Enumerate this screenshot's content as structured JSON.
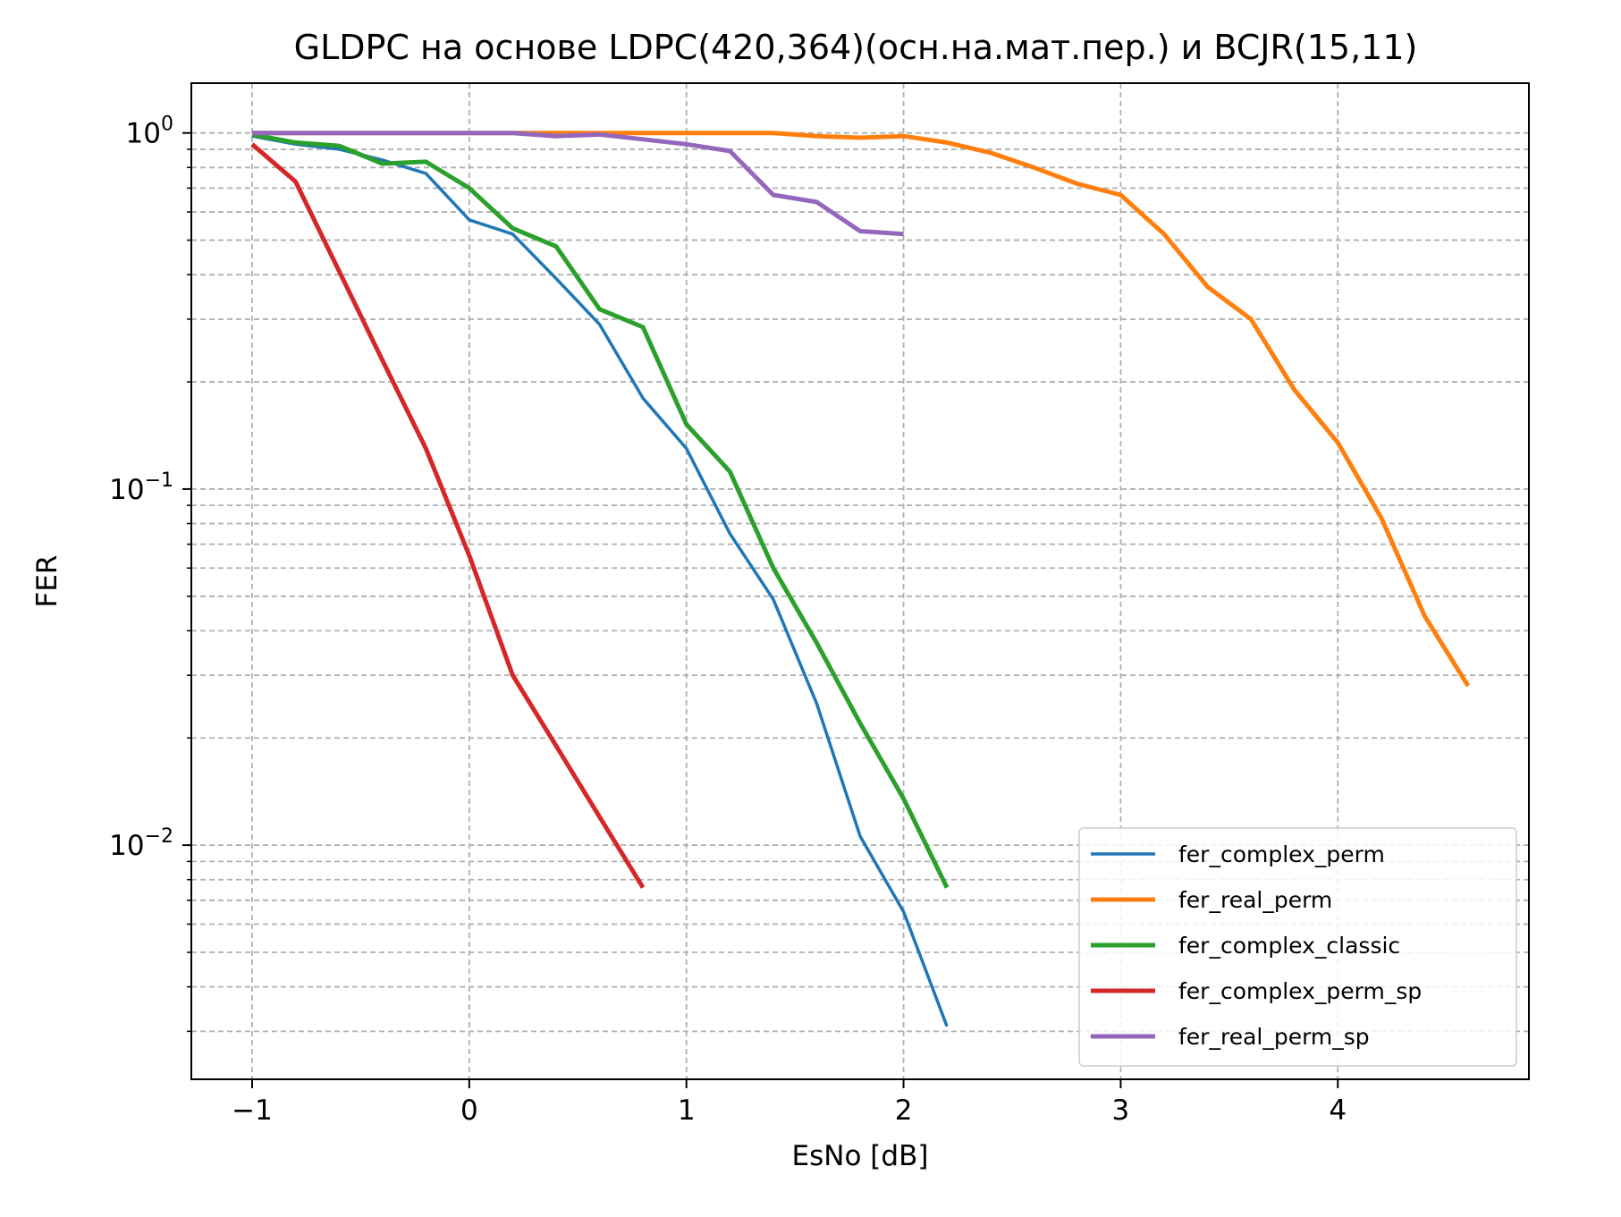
{
  "chart_data": {
    "type": "line",
    "title": "GLDPC на основе LDPC(420,364)(осн.на.мат.пер.) и BCJR(15,11)",
    "xlabel": "EsNo [dB]",
    "ylabel": "FER",
    "xlim": [
      -1.28,
      4.88
    ],
    "ylim": [
      0.0022,
      1.38
    ],
    "yscale": "log",
    "grid": true,
    "legend_position": "lower-right",
    "x_ticks": [
      {
        "value": -1,
        "label": "−1"
      },
      {
        "value": 0,
        "label": "0"
      },
      {
        "value": 1,
        "label": "1"
      },
      {
        "value": 2,
        "label": "2"
      },
      {
        "value": 3,
        "label": "3"
      },
      {
        "value": 4,
        "label": "4"
      }
    ],
    "y_ticks": [
      {
        "value": 1,
        "base": "10",
        "exp": "0"
      },
      {
        "value": 0.1,
        "base": "10",
        "exp": "−1"
      },
      {
        "value": 0.01,
        "base": "10",
        "exp": "−2"
      }
    ],
    "series": [
      {
        "name": "fer_complex_perm",
        "color": "#1f77b4",
        "width": 3.5,
        "x": [
          -1.0,
          -0.8,
          -0.6,
          -0.4,
          -0.2,
          0.0,
          0.2,
          0.4,
          0.6,
          0.8,
          1.0,
          1.2,
          1.4,
          1.6,
          1.8,
          2.0,
          2.2
        ],
        "y": [
          0.98,
          0.93,
          0.9,
          0.84,
          0.77,
          0.57,
          0.52,
          0.39,
          0.29,
          0.18,
          0.13,
          0.075,
          0.049,
          0.025,
          0.0106,
          0.0065,
          0.0031
        ]
      },
      {
        "name": "fer_real_perm",
        "color": "#ff7f0e",
        "width": 5,
        "x": [
          -1.0,
          -0.6,
          -0.2,
          0.2,
          0.6,
          1.0,
          1.4,
          1.6,
          1.8,
          2.0,
          2.2,
          2.4,
          2.6,
          2.8,
          3.0,
          3.2,
          3.4,
          3.6,
          3.8,
          4.0,
          4.2,
          4.4,
          4.6
        ],
        "y": [
          1.0,
          1.0,
          1.0,
          1.0,
          1.0,
          1.0,
          1.0,
          0.98,
          0.97,
          0.98,
          0.94,
          0.88,
          0.8,
          0.72,
          0.67,
          0.52,
          0.37,
          0.3,
          0.19,
          0.135,
          0.083,
          0.044,
          0.028
        ]
      },
      {
        "name": "fer_complex_classic",
        "color": "#2ca02c",
        "width": 5,
        "x": [
          -1.0,
          -0.8,
          -0.6,
          -0.4,
          -0.2,
          0.0,
          0.2,
          0.4,
          0.6,
          0.8,
          1.0,
          1.2,
          1.4,
          1.6,
          1.8,
          2.0,
          2.2
        ],
        "y": [
          0.99,
          0.94,
          0.92,
          0.82,
          0.83,
          0.7,
          0.54,
          0.48,
          0.32,
          0.285,
          0.152,
          0.112,
          0.06,
          0.037,
          0.022,
          0.0135,
          0.0076
        ]
      },
      {
        "name": "fer_complex_perm_sp",
        "color": "#d62728",
        "width": 5,
        "x": [
          -1.0,
          -0.8,
          -0.6,
          -0.4,
          -0.2,
          0.0,
          0.2,
          0.4,
          0.6,
          0.8
        ],
        "y": [
          0.93,
          0.73,
          0.41,
          0.23,
          0.13,
          0.065,
          0.03,
          0.019,
          0.012,
          0.0076
        ]
      },
      {
        "name": "fer_real_perm_sp",
        "color": "#9467bd",
        "width": 5,
        "x": [
          -1.0,
          -0.6,
          -0.2,
          0.2,
          0.4,
          0.6,
          0.8,
          1.0,
          1.2,
          1.4,
          1.6,
          1.8,
          2.0
        ],
        "y": [
          1.0,
          1.0,
          1.0,
          1.0,
          0.98,
          0.99,
          0.96,
          0.93,
          0.89,
          0.67,
          0.64,
          0.53,
          0.52
        ]
      }
    ]
  }
}
